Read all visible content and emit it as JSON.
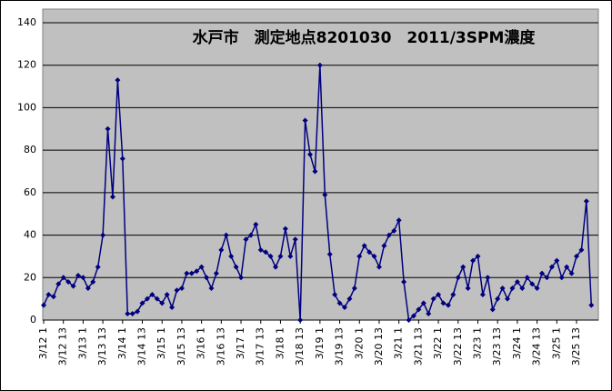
{
  "chart_data": {
    "type": "line",
    "title": "水戸市　測定地点8201030　2011/3SPM濃度",
    "categories": [
      "3/12 1",
      null,
      null,
      null,
      "3/12 13",
      null,
      null,
      null,
      "3/13 1",
      null,
      null,
      null,
      "3/13 13",
      null,
      null,
      null,
      "3/14 1",
      null,
      null,
      null,
      "3/14 13",
      null,
      null,
      null,
      "3/15 1",
      null,
      null,
      null,
      "3/15 13",
      null,
      null,
      null,
      "3/16 1",
      null,
      null,
      null,
      "3/16 13",
      null,
      null,
      null,
      "3/17 1",
      null,
      null,
      null,
      "3/17 13",
      null,
      null,
      null,
      "3/18 1",
      null,
      null,
      null,
      "3/18 13",
      null,
      null,
      null,
      "3/19 1",
      null,
      null,
      null,
      "3/19 13",
      null,
      null,
      null,
      "3/20 1",
      null,
      null,
      null,
      "3/20 13",
      null,
      null,
      null,
      "3/21 1",
      null,
      null,
      null,
      "3/21 13",
      null,
      null,
      null,
      "3/22 1",
      null,
      null,
      null,
      "3/22 13",
      null,
      null,
      null,
      "3/23 1",
      null,
      null,
      null,
      "3/23 13",
      null,
      null,
      null,
      "3/24 1",
      null,
      null,
      null,
      "3/24 13",
      null,
      null,
      null,
      "3/25 1",
      null,
      null,
      null,
      "3/25 13",
      null,
      null,
      null
    ],
    "series": [
      {
        "color": "#000080",
        "values": [
          7,
          12,
          11,
          17,
          20,
          18,
          16,
          21,
          20,
          15,
          18,
          25,
          40,
          90,
          58,
          113,
          76,
          3,
          3,
          4,
          8,
          10,
          12,
          10,
          8,
          12,
          6,
          14,
          15,
          22,
          22,
          23,
          25,
          20,
          15,
          22,
          33,
          40,
          30,
          25,
          20,
          38,
          40,
          45,
          33,
          32,
          30,
          25,
          30,
          43,
          30,
          38,
          0,
          94,
          78,
          70,
          120,
          59,
          31,
          12,
          8,
          6,
          10,
          15,
          30,
          35,
          32,
          30,
          25,
          35,
          40,
          42,
          47,
          18,
          0,
          2,
          5,
          8,
          3,
          10,
          12,
          8,
          7,
          12,
          20,
          25,
          15,
          28,
          30,
          12,
          20,
          5,
          10,
          15,
          10,
          15,
          18,
          15,
          20,
          17,
          15,
          22,
          20,
          25,
          28,
          20,
          25,
          22,
          30,
          33,
          56,
          7
        ]
      }
    ],
    "ylim": [
      0,
      140
    ],
    "yticks": [
      0,
      20,
      40,
      60,
      80,
      100,
      120,
      140
    ],
    "grid": true
  }
}
